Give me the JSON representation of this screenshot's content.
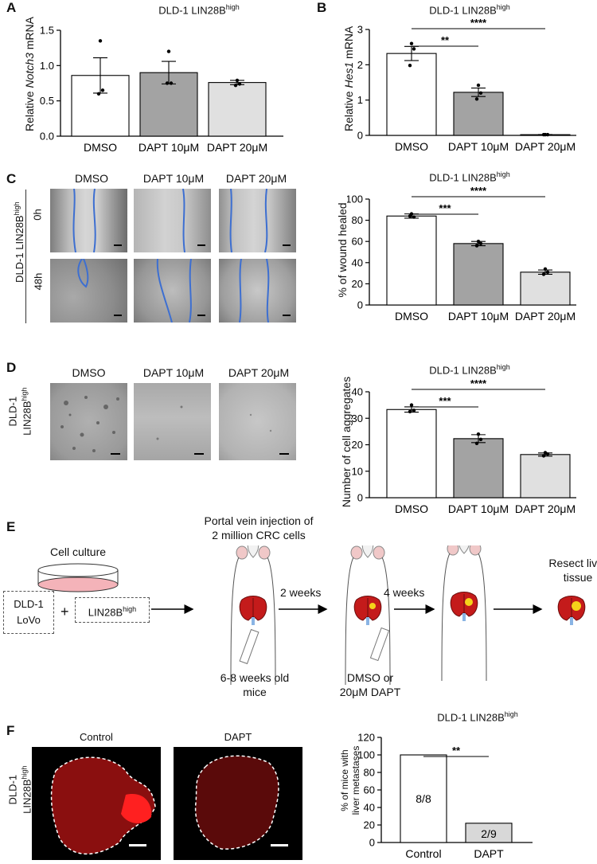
{
  "panels": {
    "A": {
      "letter": "A",
      "title_prefix": "DLD-1 LIN28B",
      "title_sup": "high",
      "ylabel_pre": "Relative ",
      "ylabel_gene": "Notch3",
      "ylabel_post": " mRNA",
      "yticks": [
        "0.0",
        "0.5",
        "1.0",
        "1.5"
      ],
      "categories": [
        "DMSO",
        "DAPT 10μM",
        "DAPT 20μM"
      ]
    },
    "B": {
      "letter": "B",
      "title_prefix": "DLD-1 LIN28B",
      "title_sup": "high",
      "ylabel_pre": "Relative ",
      "ylabel_gene": "Hes1",
      "ylabel_post": " mRNA",
      "yticks": [
        "0",
        "1",
        "2",
        "3"
      ],
      "categories": [
        "DMSO",
        "DAPT 10μM",
        "DAPT 20μM"
      ],
      "sig": [
        "**",
        "****"
      ]
    },
    "C": {
      "letter": "C",
      "col_labels": [
        "DMSO",
        "DAPT 10μM",
        "DAPT 20μM"
      ],
      "row_labels": [
        "0h",
        "48h"
      ],
      "side_label_prefix": "DLD-1 LIN28B",
      "side_label_sup": "high",
      "title_prefix": "DLD-1 LIN28B",
      "title_sup": "high",
      "ylabel": "% of wound healed",
      "yticks": [
        "0",
        "20",
        "40",
        "60",
        "80",
        "100"
      ],
      "categories": [
        "DMSO",
        "DAPT 10μM",
        "DAPT 20μM"
      ],
      "sig": [
        "***",
        "****"
      ]
    },
    "D": {
      "letter": "D",
      "col_labels": [
        "DMSO",
        "DAPT 10μM",
        "DAPT 20μM"
      ],
      "side_label_line1": "DLD-1",
      "side_label_prefix": "LIN28B",
      "side_label_sup": "high",
      "title_prefix": "DLD-1 LIN28B",
      "title_sup": "high",
      "ylabel": "Number of cell aggregates",
      "yticks": [
        "0",
        "10",
        "20",
        "30",
        "40"
      ],
      "categories": [
        "DMSO",
        "DAPT 10μM",
        "DAPT 20μM"
      ],
      "sig": [
        "***",
        "****"
      ]
    },
    "E": {
      "letter": "E",
      "injection_line1": "Portal vein injection of",
      "injection_line2": "2 million CRC cells",
      "cell_culture": "Cell culture",
      "cells_line1": "DLD-1",
      "cells_line2": "LoVo",
      "plus": "+",
      "lin_prefix": "LIN28B",
      "lin_sup": "high",
      "two_weeks": "2 weeks",
      "four_weeks": "4 weeks",
      "resect_line1": "Resect liver",
      "resect_line2": "tissue",
      "age_line1": "6-8 weeks old",
      "age_line2": "mice",
      "treat_line1": "DMSO or",
      "treat_line2": "20μM DAPT"
    },
    "F": {
      "letter": "F",
      "img_labels": [
        "Control",
        "DAPT"
      ],
      "side_label_line1": "DLD-1",
      "side_label_prefix": "LIN28B",
      "side_label_sup": "high",
      "title_prefix": "DLD-1 LIN28B",
      "title_sup": "high",
      "ylabel_line1": "% of mice with",
      "ylabel_line2": "liver metastases",
      "yticks": [
        "0",
        "20",
        "40",
        "60",
        "80",
        "100",
        "120"
      ],
      "categories": [
        "Control",
        "DAPT"
      ],
      "bar_labels": [
        "8/8",
        "2/9"
      ],
      "sig": [
        "**"
      ]
    }
  },
  "chart_data": [
    {
      "type": "bar",
      "panel": "A",
      "ylim": [
        0,
        1.5
      ],
      "categories": [
        "DMSO",
        "DAPT 10μM",
        "DAPT 20μM"
      ],
      "values": [
        0.86,
        0.9,
        0.76
      ],
      "errors": [
        0.25,
        0.16,
        0.03
      ],
      "points": [
        [
          1.35,
          0.65,
          0.6
        ],
        [
          1.2,
          0.75,
          0.75
        ],
        [
          0.79,
          0.74,
          0.72
        ]
      ],
      "colors": [
        "#ffffff",
        "#a3a3a3",
        "#e0e0e0"
      ]
    },
    {
      "type": "bar",
      "panel": "B",
      "ylim": [
        0,
        3
      ],
      "categories": [
        "DMSO",
        "DAPT 10μM",
        "DAPT 20μM"
      ],
      "values": [
        2.32,
        1.22,
        0.02
      ],
      "errors": [
        0.2,
        0.12,
        0.005
      ],
      "points": [
        [
          2.6,
          2.45,
          1.98
        ],
        [
          1.42,
          1.2,
          1.03
        ],
        [
          0.02,
          0.02,
          0.02
        ]
      ],
      "colors": [
        "#ffffff",
        "#a3a3a3",
        "#e0e0e0"
      ],
      "significance": [
        {
          "from": 0,
          "to": 1,
          "label": "**"
        },
        {
          "from": 0,
          "to": 2,
          "label": "****"
        }
      ]
    },
    {
      "type": "bar",
      "panel": "C",
      "ylim": [
        0,
        100
      ],
      "categories": [
        "DMSO",
        "DAPT 10μM",
        "DAPT 20μM"
      ],
      "values": [
        84,
        58,
        31
      ],
      "errors": [
        2,
        2,
        2
      ],
      "points": [
        [
          86,
          83,
          84
        ],
        [
          60,
          58,
          56
        ],
        [
          34,
          31,
          29
        ]
      ],
      "colors": [
        "#ffffff",
        "#a3a3a3",
        "#e0e0e0"
      ],
      "significance": [
        {
          "from": 0,
          "to": 1,
          "label": "***"
        },
        {
          "from": 0,
          "to": 2,
          "label": "****"
        }
      ]
    },
    {
      "type": "bar",
      "panel": "D",
      "ylim": [
        0,
        40
      ],
      "categories": [
        "DMSO",
        "DAPT 10μM",
        "DAPT 20μM"
      ],
      "values": [
        33.3,
        22.3,
        16.3
      ],
      "errors": [
        1,
        1.5,
        0.6
      ],
      "points": [
        [
          35,
          33,
          32.5
        ],
        [
          24,
          22,
          20.5
        ],
        [
          17,
          16.5,
          15.8
        ]
      ],
      "colors": [
        "#ffffff",
        "#a3a3a3",
        "#e0e0e0"
      ],
      "significance": [
        {
          "from": 0,
          "to": 1,
          "label": "***"
        },
        {
          "from": 0,
          "to": 2,
          "label": "****"
        }
      ]
    },
    {
      "type": "bar",
      "panel": "F",
      "ylim": [
        0,
        120
      ],
      "categories": [
        "Control",
        "DAPT"
      ],
      "values": [
        100,
        22
      ],
      "bar_labels": [
        "8/8",
        "2/9"
      ],
      "colors": [
        "#ffffff",
        "#d8d8d8"
      ],
      "significance": [
        {
          "from": 0,
          "to": 1,
          "label": "**"
        }
      ]
    }
  ]
}
